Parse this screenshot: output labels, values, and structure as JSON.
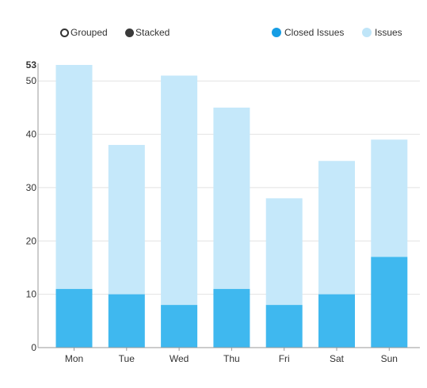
{
  "controls": {
    "grouped_label": "Grouped",
    "stacked_label": "Stacked"
  },
  "colors": {
    "closed": "#3fb8ef",
    "issues": "#c5e8fa",
    "closed_legend": "#169de4",
    "issues_legend": "#bfe5f8"
  },
  "chart_data": {
    "type": "bar",
    "mode": "stacked",
    "categories": [
      "Mon",
      "Tue",
      "Wed",
      "Thu",
      "Fri",
      "Sat",
      "Sun"
    ],
    "series": [
      {
        "name": "Closed Issues",
        "values": [
          11,
          10,
          8,
          11,
          8,
          10,
          17
        ]
      },
      {
        "name": "Issues",
        "values": [
          42,
          28,
          43,
          34,
          20,
          25,
          22
        ]
      }
    ],
    "totals": [
      53,
      38,
      51,
      45,
      28,
      35,
      39
    ],
    "ylim": [
      0,
      53
    ],
    "yticks": [
      "0",
      "10",
      "20",
      "30",
      "40",
      "50"
    ],
    "ymax_label": "53",
    "grid": true,
    "legend_position": "top-right"
  }
}
